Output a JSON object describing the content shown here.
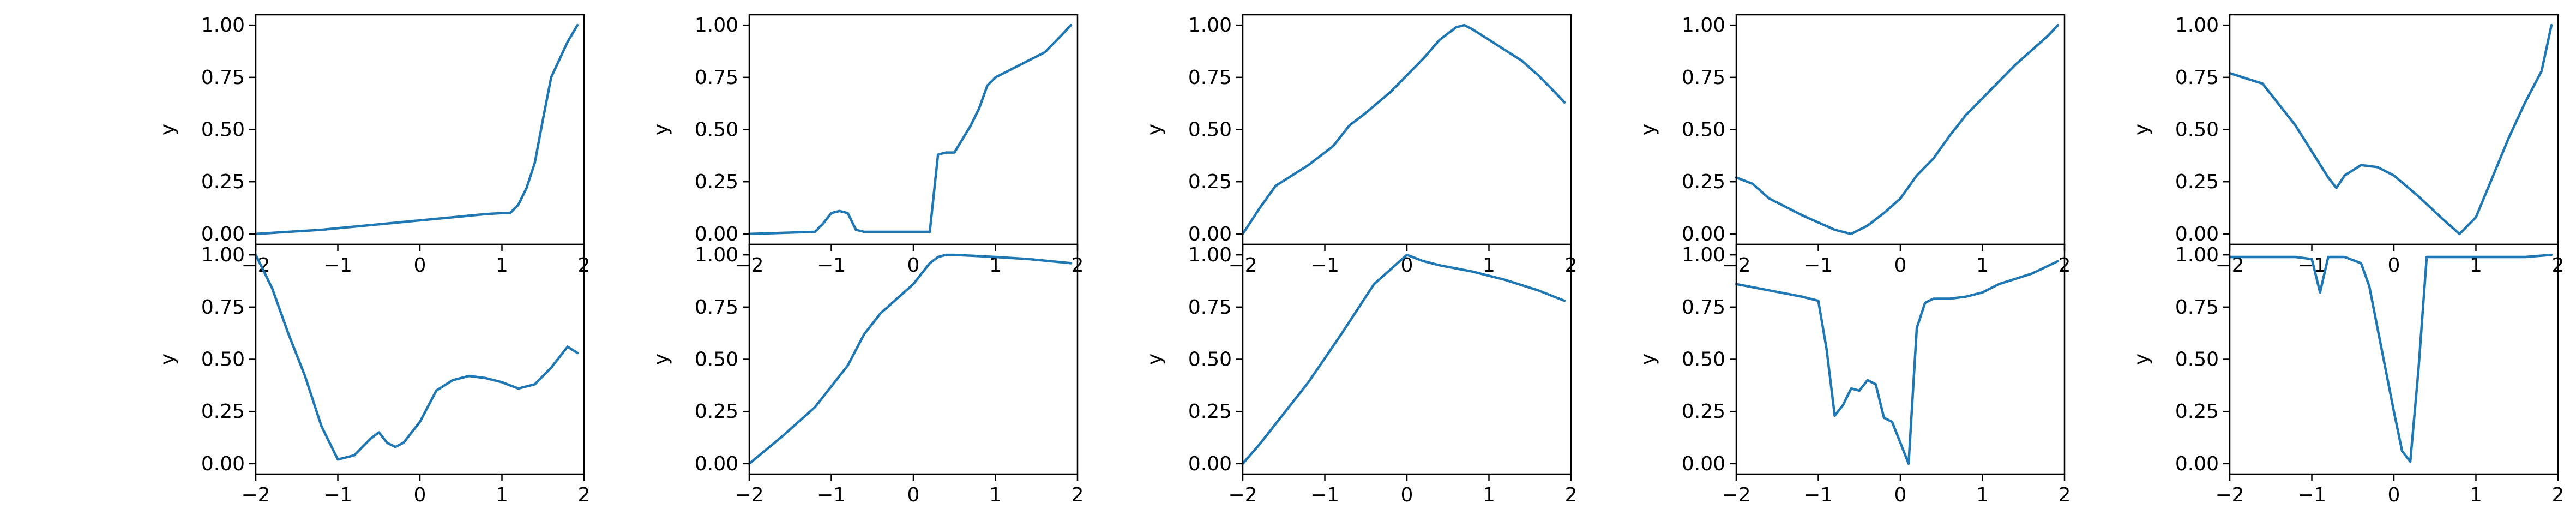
{
  "chart_data": {
    "type": "line",
    "colors": {
      "line": "#1f77b4"
    },
    "grid": false,
    "rows": 2,
    "cols": 5,
    "panels": [
      {
        "row": 0,
        "col": 0,
        "ylabel": "y",
        "xlim": [
          -2,
          2
        ],
        "ylim": [
          -0.05,
          1.05
        ],
        "x": [
          -2.0,
          -1.6,
          -1.2,
          -0.8,
          -0.4,
          0.0,
          0.4,
          0.8,
          1.0,
          1.1,
          1.2,
          1.3,
          1.4,
          1.5,
          1.6,
          1.8,
          1.92
        ],
        "y": [
          0.0,
          0.01,
          0.02,
          0.035,
          0.05,
          0.065,
          0.08,
          0.095,
          0.1,
          0.1,
          0.14,
          0.22,
          0.34,
          0.55,
          0.75,
          0.92,
          1.0
        ]
      },
      {
        "row": 0,
        "col": 1,
        "ylabel": "y",
        "xlim": [
          -2,
          2
        ],
        "ylim": [
          -0.05,
          1.05
        ],
        "x": [
          -2.0,
          -1.2,
          -1.1,
          -1.0,
          -0.9,
          -0.8,
          -0.7,
          -0.6,
          0.0,
          0.2,
          0.3,
          0.4,
          0.5,
          0.7,
          0.8,
          0.9,
          1.0,
          1.1,
          1.6,
          1.8,
          1.92
        ],
        "y": [
          0.0,
          0.01,
          0.05,
          0.1,
          0.11,
          0.1,
          0.02,
          0.01,
          0.01,
          0.01,
          0.38,
          0.39,
          0.39,
          0.52,
          0.6,
          0.71,
          0.75,
          0.77,
          0.87,
          0.95,
          1.0
        ]
      },
      {
        "row": 0,
        "col": 2,
        "ylabel": "y",
        "xlim": [
          -2,
          2
        ],
        "ylim": [
          -0.05,
          1.05
        ],
        "x": [
          -2.0,
          -1.8,
          -1.6,
          -1.2,
          -0.9,
          -0.7,
          -0.5,
          -0.2,
          0.0,
          0.2,
          0.4,
          0.6,
          0.7,
          0.8,
          1.0,
          1.2,
          1.4,
          1.6,
          1.8,
          1.92
        ],
        "y": [
          0.0,
          0.12,
          0.23,
          0.33,
          0.42,
          0.52,
          0.58,
          0.68,
          0.76,
          0.84,
          0.93,
          0.99,
          1.0,
          0.98,
          0.93,
          0.88,
          0.83,
          0.76,
          0.68,
          0.63
        ]
      },
      {
        "row": 0,
        "col": 3,
        "ylabel": "y",
        "xlim": [
          -2,
          2
        ],
        "ylim": [
          -0.05,
          1.05
        ],
        "x": [
          -2.0,
          -1.8,
          -1.6,
          -1.2,
          -0.8,
          -0.6,
          -0.4,
          -0.2,
          0.0,
          0.2,
          0.4,
          0.6,
          0.8,
          1.0,
          1.2,
          1.4,
          1.6,
          1.8,
          1.92
        ],
        "y": [
          0.27,
          0.24,
          0.17,
          0.09,
          0.02,
          0.0,
          0.04,
          0.1,
          0.17,
          0.28,
          0.36,
          0.47,
          0.57,
          0.65,
          0.73,
          0.81,
          0.88,
          0.95,
          1.0
        ]
      },
      {
        "row": 0,
        "col": 4,
        "ylabel": "y",
        "xlim": [
          -2,
          2
        ],
        "ylim": [
          -0.05,
          1.05
        ],
        "x": [
          -2.0,
          -1.6,
          -1.2,
          -0.8,
          -0.7,
          -0.6,
          -0.4,
          -0.2,
          0.0,
          0.3,
          0.6,
          0.8,
          1.0,
          1.2,
          1.4,
          1.6,
          1.8,
          1.92
        ],
        "y": [
          0.77,
          0.72,
          0.52,
          0.27,
          0.22,
          0.28,
          0.33,
          0.32,
          0.28,
          0.18,
          0.07,
          0.0,
          0.08,
          0.27,
          0.46,
          0.63,
          0.78,
          1.0
        ]
      },
      {
        "row": 1,
        "col": 0,
        "ylabel": "y",
        "xlim": [
          -2,
          2
        ],
        "ylim": [
          -0.05,
          1.05
        ],
        "x": [
          -2.0,
          -1.8,
          -1.6,
          -1.4,
          -1.2,
          -1.0,
          -0.8,
          -0.6,
          -0.5,
          -0.4,
          -0.3,
          -0.2,
          0.0,
          0.2,
          0.4,
          0.6,
          0.8,
          1.0,
          1.2,
          1.4,
          1.6,
          1.8,
          1.92
        ],
        "y": [
          1.0,
          0.84,
          0.62,
          0.42,
          0.18,
          0.02,
          0.04,
          0.12,
          0.15,
          0.1,
          0.08,
          0.1,
          0.2,
          0.35,
          0.4,
          0.42,
          0.41,
          0.39,
          0.36,
          0.38,
          0.46,
          0.56,
          0.53
        ]
      },
      {
        "row": 1,
        "col": 1,
        "ylabel": "y",
        "xlim": [
          -2,
          2
        ],
        "ylim": [
          -0.05,
          1.05
        ],
        "x": [
          -2.0,
          -1.6,
          -1.2,
          -1.0,
          -0.8,
          -0.6,
          -0.4,
          0.0,
          0.2,
          0.3,
          0.4,
          0.5,
          1.0,
          1.4,
          1.92
        ],
        "y": [
          0.0,
          0.13,
          0.27,
          0.37,
          0.47,
          0.62,
          0.72,
          0.86,
          0.96,
          0.99,
          1.0,
          1.0,
          0.99,
          0.98,
          0.96
        ]
      },
      {
        "row": 1,
        "col": 2,
        "ylabel": "y",
        "xlim": [
          -2,
          2
        ],
        "ylim": [
          -0.05,
          1.05
        ],
        "x": [
          -2.0,
          -1.8,
          -1.6,
          -1.2,
          -0.8,
          -0.4,
          0.0,
          0.2,
          0.4,
          0.8,
          1.2,
          1.6,
          1.92
        ],
        "y": [
          0.0,
          0.09,
          0.19,
          0.39,
          0.62,
          0.86,
          1.0,
          0.97,
          0.95,
          0.92,
          0.88,
          0.83,
          0.78
        ]
      },
      {
        "row": 1,
        "col": 3,
        "ylabel": "y",
        "xlim": [
          -2,
          2
        ],
        "ylim": [
          -0.05,
          1.05
        ],
        "x": [
          -2.0,
          -1.6,
          -1.2,
          -1.0,
          -0.9,
          -0.8,
          -0.7,
          -0.6,
          -0.5,
          -0.4,
          -0.3,
          -0.2,
          -0.1,
          0.0,
          0.1,
          0.2,
          0.3,
          0.4,
          0.6,
          0.8,
          1.0,
          1.2,
          1.6,
          1.92
        ],
        "y": [
          0.86,
          0.83,
          0.8,
          0.78,
          0.55,
          0.23,
          0.28,
          0.36,
          0.35,
          0.4,
          0.38,
          0.22,
          0.2,
          0.1,
          0.0,
          0.65,
          0.77,
          0.79,
          0.79,
          0.8,
          0.82,
          0.86,
          0.91,
          0.97
        ]
      },
      {
        "row": 1,
        "col": 4,
        "ylabel": "y",
        "xlim": [
          -2,
          2
        ],
        "ylim": [
          -0.05,
          1.05
        ],
        "x": [
          -2.0,
          -1.6,
          -1.2,
          -1.0,
          -0.9,
          -0.8,
          -0.6,
          -0.4,
          -0.3,
          -0.2,
          0.0,
          0.1,
          0.2,
          0.3,
          0.4,
          0.8,
          1.2,
          1.6,
          1.92
        ],
        "y": [
          0.99,
          0.99,
          0.99,
          0.98,
          0.82,
          0.99,
          0.99,
          0.96,
          0.85,
          0.65,
          0.25,
          0.06,
          0.01,
          0.45,
          0.99,
          0.99,
          0.99,
          0.99,
          1.0
        ]
      }
    ],
    "x_ticks": [
      -2,
      -1,
      0,
      1,
      2
    ],
    "x_tick_labels": [
      "−2",
      "−1",
      "0",
      "1",
      "2"
    ],
    "y_ticks": [
      0.0,
      0.25,
      0.5,
      0.75,
      1.0
    ],
    "y_tick_labels": [
      "0.00",
      "0.25",
      "0.50",
      "0.75",
      "1.00"
    ]
  }
}
